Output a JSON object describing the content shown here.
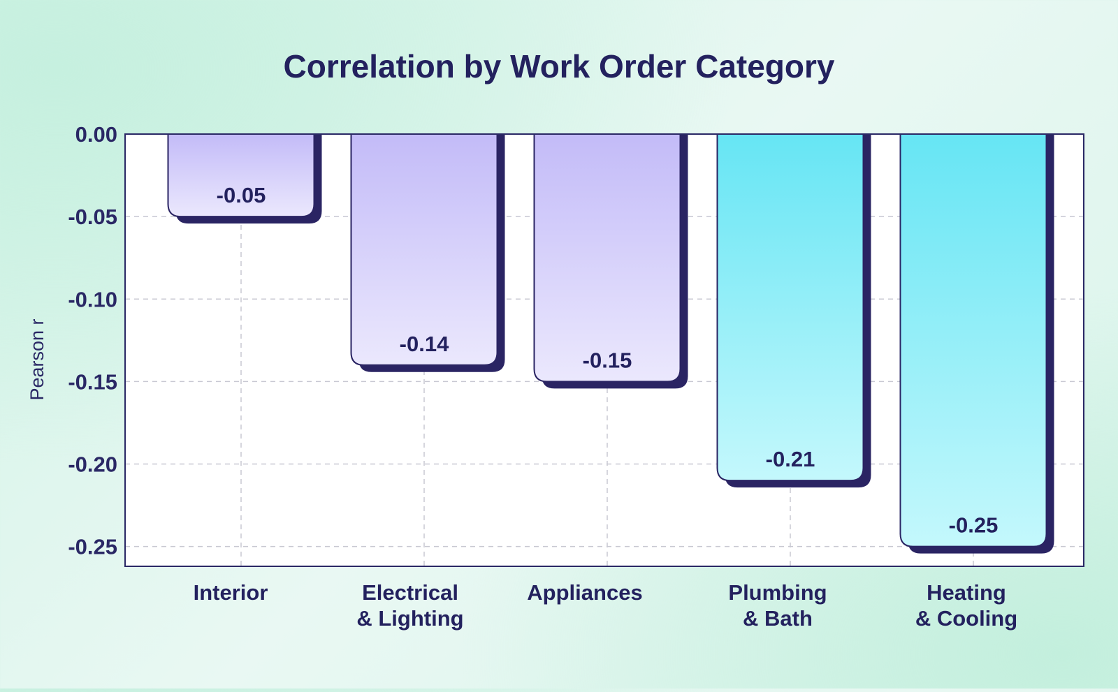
{
  "chart_data": {
    "type": "bar",
    "title": "Correlation by Work Order Category",
    "xlabel": "",
    "ylabel": "Pearson r",
    "categories": [
      [
        "Interior"
      ],
      [
        "Electrical",
        "& Lighting"
      ],
      [
        "Appliances"
      ],
      [
        "Plumbing",
        "& Bath"
      ],
      [
        "Heating",
        "& Cooling"
      ]
    ],
    "values": [
      -0.05,
      -0.14,
      -0.15,
      -0.21,
      -0.25
    ],
    "value_labels": [
      "-0.05",
      "-0.14",
      "-0.15",
      "-0.21",
      "-0.25"
    ],
    "ylim": [
      -0.262,
      0.0
    ],
    "yticks": [
      0.0,
      -0.05,
      -0.1,
      -0.15,
      -0.2,
      -0.25
    ],
    "ytick_labels": [
      "0.00",
      "-0.05",
      "-0.10",
      "-0.15",
      "-0.20",
      "-0.25"
    ],
    "grid": true,
    "colors": {
      "title": "#23215e",
      "axis": "#2a2865",
      "shadow": "#2a2463",
      "grid": "#c8c8d2",
      "purple_top": "#c3bbf8",
      "purple_bottom": "#ebe8fd",
      "cyan_top": "#66e5f4",
      "cyan_bottom": "#c4f8fc"
    },
    "bar_color_groups": [
      "purple",
      "purple",
      "purple",
      "cyan",
      "cyan"
    ]
  }
}
